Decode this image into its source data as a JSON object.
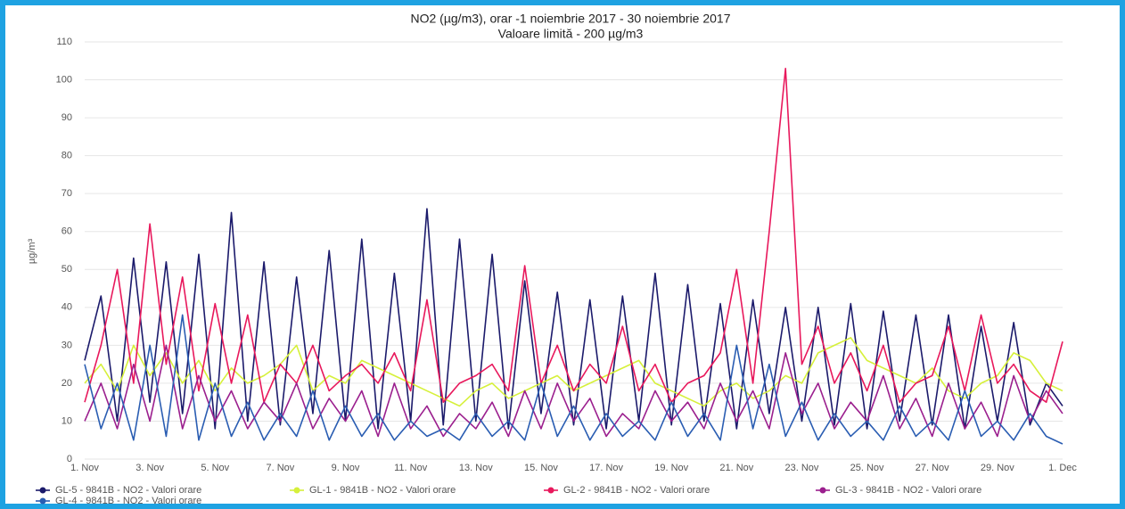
{
  "chart_data": {
    "type": "line",
    "title": "NO2 (µg/m3), orar -1 noiembrie 2017 - 30 noiembrie 2017",
    "subtitle": "Valoare limită - 200 µg/m3",
    "ylabel": "µg/m³",
    "categories": [
      "1. Nov",
      null,
      null,
      null,
      "3. Nov",
      null,
      null,
      null,
      "5. Nov",
      null,
      null,
      null,
      "7. Nov",
      null,
      null,
      null,
      "9. Nov",
      null,
      null,
      null,
      "11. Nov",
      null,
      null,
      null,
      "13. Nov",
      null,
      null,
      null,
      "15. Nov",
      null,
      null,
      null,
      "17. Nov",
      null,
      null,
      null,
      "19. Nov",
      null,
      null,
      null,
      "21. Nov",
      null,
      null,
      null,
      "23. Nov",
      null,
      null,
      null,
      "25. Nov",
      null,
      null,
      null,
      "27. Nov",
      null,
      null,
      null,
      "29. Nov",
      null,
      null,
      null,
      "1. Dec"
    ],
    "series": [
      {
        "name": "GL-5 - 9841B - NO2 - Valori orare",
        "color": "#1b1a6b",
        "values": [
          26,
          43,
          10,
          53,
          15,
          52,
          12,
          54,
          8,
          65,
          10,
          52,
          9,
          48,
          12,
          55,
          10,
          58,
          8,
          49,
          10,
          66,
          9,
          58,
          10,
          54,
          8,
          47,
          12,
          44,
          9,
          42,
          8,
          43,
          10,
          49,
          9,
          46,
          10,
          41,
          8,
          42,
          12,
          40,
          10,
          40,
          9,
          41,
          8,
          39,
          10,
          38,
          9,
          38,
          8,
          35,
          10,
          36,
          9,
          20,
          14
        ]
      },
      {
        "name": "GL-1 - 9841B - NO2 - Valori orare",
        "color": "#d6f03a",
        "values": [
          20,
          25,
          18,
          30,
          22,
          28,
          20,
          26,
          18,
          24,
          20,
          22,
          25,
          30,
          18,
          22,
          20,
          26,
          24,
          22,
          20,
          18,
          16,
          14,
          18,
          20,
          16,
          18,
          20,
          22,
          18,
          20,
          22,
          24,
          26,
          20,
          18,
          16,
          14,
          18,
          20,
          16,
          18,
          22,
          20,
          28,
          30,
          32,
          26,
          24,
          22,
          20,
          24,
          18,
          16,
          20,
          22,
          28,
          26,
          20,
          18
        ]
      },
      {
        "name": "GL-2 - 9841B - NO2 - Valori orare",
        "color": "#e8185c",
        "values": [
          15,
          30,
          50,
          20,
          62,
          25,
          48,
          18,
          41,
          20,
          38,
          15,
          25,
          20,
          30,
          18,
          22,
          25,
          20,
          28,
          18,
          42,
          15,
          20,
          22,
          25,
          18,
          51,
          20,
          30,
          18,
          25,
          20,
          35,
          18,
          25,
          15,
          20,
          22,
          28,
          50,
          20,
          60,
          103,
          25,
          35,
          20,
          28,
          18,
          30,
          15,
          20,
          22,
          35,
          18,
          38,
          20,
          25,
          18,
          15,
          31
        ]
      },
      {
        "name": "GL-3 - 9841B - NO2 - Valori orare",
        "color": "#9b1f8e",
        "values": [
          10,
          20,
          8,
          25,
          10,
          30,
          8,
          22,
          10,
          18,
          8,
          15,
          10,
          20,
          8,
          16,
          10,
          18,
          6,
          20,
          8,
          14,
          6,
          12,
          8,
          15,
          6,
          18,
          8,
          20,
          10,
          16,
          6,
          12,
          8,
          18,
          10,
          15,
          8,
          20,
          10,
          18,
          8,
          28,
          12,
          20,
          8,
          15,
          10,
          22,
          8,
          16,
          6,
          20,
          8,
          15,
          6,
          22,
          10,
          18,
          12
        ]
      },
      {
        "name": "GL-4 - 9841B - NO2 - Valori orare",
        "color": "#2a5db2",
        "values": [
          25,
          8,
          20,
          5,
          30,
          6,
          38,
          5,
          20,
          6,
          15,
          5,
          12,
          6,
          18,
          5,
          14,
          6,
          12,
          5,
          10,
          6,
          8,
          5,
          12,
          6,
          10,
          5,
          20,
          6,
          14,
          5,
          12,
          6,
          10,
          5,
          15,
          6,
          12,
          5,
          30,
          8,
          25,
          6,
          15,
          5,
          12,
          6,
          10,
          5,
          14,
          6,
          10,
          5,
          18,
          6,
          10,
          5,
          12,
          6,
          4
        ]
      }
    ],
    "ylim": [
      0,
      110
    ],
    "yticks": [
      0,
      10,
      20,
      30,
      40,
      50,
      60,
      70,
      80,
      90,
      100,
      110
    ],
    "grid": true
  }
}
